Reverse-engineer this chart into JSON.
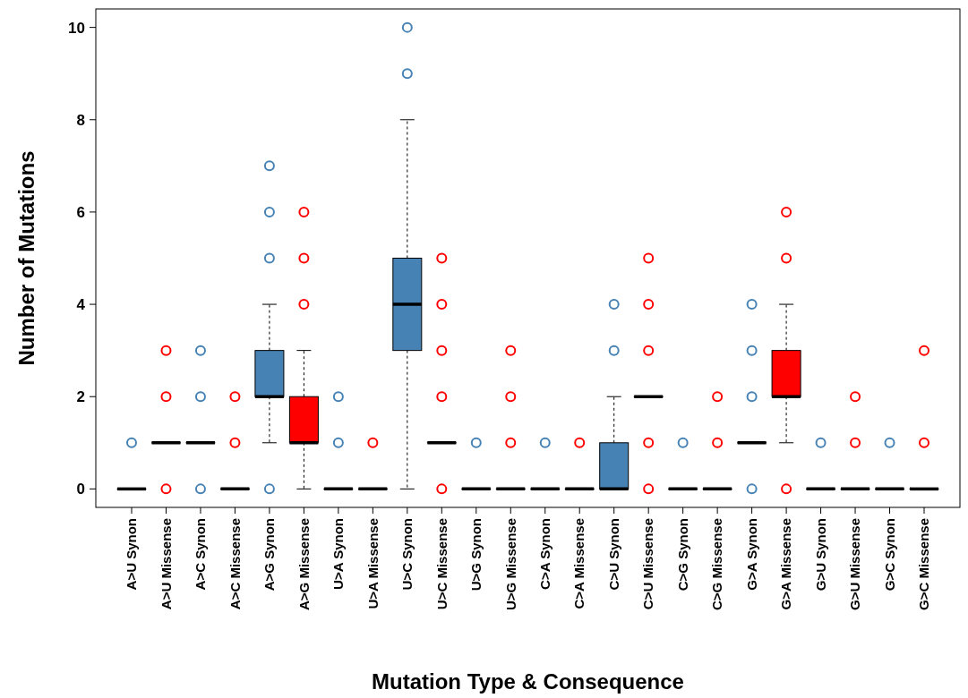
{
  "chart_data": {
    "type": "box",
    "xlabel": "Mutation Type & Consequence",
    "ylabel": "Number of Mutations",
    "ylim": [
      -0.4,
      10.4
    ],
    "yticks": [
      0,
      2,
      4,
      6,
      8,
      10
    ],
    "grid": false,
    "marker": "circle",
    "categories": [
      "A>U Synon",
      "A>U Missense",
      "A>C Synon",
      "A>C Missense",
      "A>G Synon",
      "A>G Missense",
      "U>A Synon",
      "U>A Missense",
      "U>C Synon",
      "U>C Missense",
      "U>G Synon",
      "U>G Missense",
      "C>A Synon",
      "C>A Missense",
      "C>U Synon",
      "C>U Missense",
      "C>G Synon",
      "C>G Missense",
      "G>A Synon",
      "G>A Missense",
      "G>U Synon",
      "G>U Missense",
      "G>C Synon",
      "G>C Missense"
    ],
    "colors": [
      "#4682b4",
      "#ff0000",
      "#4682b4",
      "#ff0000",
      "#4682b4",
      "#ff0000",
      "#4682b4",
      "#ff0000",
      "#4682b4",
      "#ff0000",
      "#4682b4",
      "#ff0000",
      "#4682b4",
      "#ff0000",
      "#4682b4",
      "#ff0000",
      "#4682b4",
      "#ff0000",
      "#4682b4",
      "#ff0000",
      "#4682b4",
      "#ff0000",
      "#4682b4",
      "#ff0000"
    ],
    "boxes": [
      {
        "low": 0,
        "q1": 0,
        "median": 0,
        "q3": 0,
        "high": 0,
        "outliers": [
          1
        ]
      },
      {
        "low": 1,
        "q1": 1,
        "median": 1,
        "q3": 1,
        "high": 1,
        "outliers": [
          0,
          2,
          3
        ]
      },
      {
        "low": 1,
        "q1": 1,
        "median": 1,
        "q3": 1,
        "high": 1,
        "outliers": [
          0,
          2,
          3
        ]
      },
      {
        "low": 0,
        "q1": 0,
        "median": 0,
        "q3": 0,
        "high": 0,
        "outliers": [
          1,
          2
        ]
      },
      {
        "low": 1,
        "q1": 2,
        "median": 2,
        "q3": 3,
        "high": 4,
        "outliers": [
          0,
          5,
          6,
          7
        ]
      },
      {
        "low": 0,
        "q1": 1,
        "median": 1,
        "q3": 2,
        "high": 3,
        "outliers": [
          4,
          5,
          6
        ]
      },
      {
        "low": 0,
        "q1": 0,
        "median": 0,
        "q3": 0,
        "high": 0,
        "outliers": [
          1,
          2
        ]
      },
      {
        "low": 0,
        "q1": 0,
        "median": 0,
        "q3": 0,
        "high": 0,
        "outliers": [
          1
        ]
      },
      {
        "low": 0,
        "q1": 3,
        "median": 4,
        "q3": 5,
        "high": 8,
        "outliers": [
          9,
          10
        ]
      },
      {
        "low": 1,
        "q1": 1,
        "median": 1,
        "q3": 1,
        "high": 1,
        "outliers": [
          0,
          2,
          3,
          4,
          5
        ]
      },
      {
        "low": 0,
        "q1": 0,
        "median": 0,
        "q3": 0,
        "high": 0,
        "outliers": [
          1
        ]
      },
      {
        "low": 0,
        "q1": 0,
        "median": 0,
        "q3": 0,
        "high": 0,
        "outliers": [
          1,
          2,
          3
        ]
      },
      {
        "low": 0,
        "q1": 0,
        "median": 0,
        "q3": 0,
        "high": 0,
        "outliers": [
          1
        ]
      },
      {
        "low": 0,
        "q1": 0,
        "median": 0,
        "q3": 0,
        "high": 0,
        "outliers": [
          1
        ]
      },
      {
        "low": 0,
        "q1": 0,
        "median": 0,
        "q3": 1,
        "high": 2,
        "outliers": [
          3,
          4
        ]
      },
      {
        "low": 2,
        "q1": 2,
        "median": 2,
        "q3": 2,
        "high": 2,
        "outliers": [
          0,
          1,
          3,
          4,
          5
        ]
      },
      {
        "low": 0,
        "q1": 0,
        "median": 0,
        "q3": 0,
        "high": 0,
        "outliers": [
          1
        ]
      },
      {
        "low": 0,
        "q1": 0,
        "median": 0,
        "q3": 0,
        "high": 0,
        "outliers": [
          1,
          2
        ]
      },
      {
        "low": 1,
        "q1": 1,
        "median": 1,
        "q3": 1,
        "high": 1,
        "outliers": [
          0,
          2,
          3,
          4
        ]
      },
      {
        "low": 1,
        "q1": 2,
        "median": 2,
        "q3": 3,
        "high": 4,
        "outliers": [
          0,
          5,
          6
        ]
      },
      {
        "low": 0,
        "q1": 0,
        "median": 0,
        "q3": 0,
        "high": 0,
        "outliers": [
          1
        ]
      },
      {
        "low": 0,
        "q1": 0,
        "median": 0,
        "q3": 0,
        "high": 0,
        "outliers": [
          1,
          2
        ]
      },
      {
        "low": 0,
        "q1": 0,
        "median": 0,
        "q3": 0,
        "high": 0,
        "outliers": [
          1
        ]
      },
      {
        "low": 0,
        "q1": 0,
        "median": 0,
        "q3": 0,
        "high": 0,
        "outliers": [
          1,
          3
        ]
      }
    ]
  }
}
